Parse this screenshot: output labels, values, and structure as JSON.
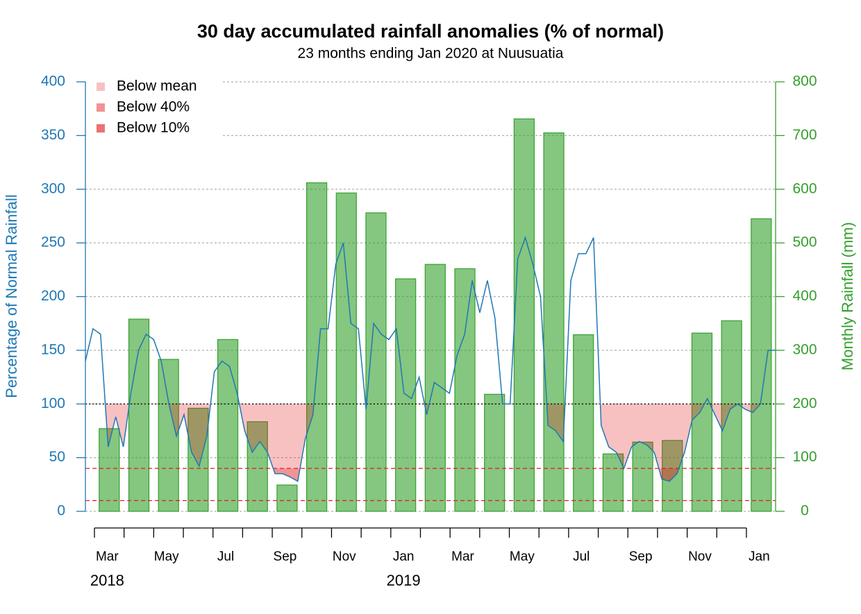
{
  "chart_data": {
    "type": "bar",
    "title": "30 day accumulated rainfall anomalies (% of normal)",
    "subtitle": "23 months ending Jan 2020 at Nuusuatia",
    "y_label": "Percentage of Normal Rainfall",
    "y2_label": "Monthly Rainfall (mm)",
    "categories": [
      "Mar",
      null,
      "May",
      null,
      "Jul",
      null,
      "Sep",
      null,
      "Nov",
      null,
      "Jan",
      null,
      "Mar",
      null,
      "May",
      null,
      "Jul",
      null,
      "Sep",
      null,
      "Nov",
      null,
      "Jan"
    ],
    "year_labels": [
      "2018",
      null,
      null,
      null,
      null,
      null,
      null,
      null,
      null,
      null,
      "2019",
      null,
      null,
      null,
      null,
      null,
      null,
      null,
      null,
      null,
      null,
      null,
      null
    ],
    "ylim": [
      0,
      400
    ],
    "yticks": [
      0,
      50,
      100,
      150,
      200,
      250,
      300,
      350,
      400
    ],
    "y2lim": [
      0,
      800
    ],
    "y2ticks": [
      0,
      100,
      200,
      300,
      400,
      500,
      600,
      700,
      800
    ],
    "grid": true,
    "legend": "top-left",
    "axis_color": "#1f78b4",
    "axis2_color": "#33a02c",
    "bars": {
      "axis": "y2",
      "color": "#33a02c",
      "values": [
        154,
        358,
        283,
        192,
        320,
        167,
        49,
        612,
        593,
        556,
        433,
        460,
        452,
        218,
        731,
        705,
        329,
        107,
        129,
        132,
        332,
        355,
        545
      ]
    },
    "line": {
      "color": "#1f78b4",
      "values": [
        140,
        170,
        165,
        60,
        88,
        60,
        110,
        150,
        165,
        160,
        140,
        100,
        70,
        90,
        55,
        42,
        70,
        130,
        140,
        135,
        110,
        75,
        55,
        65,
        55,
        35,
        35,
        32,
        28,
        68,
        90,
        170,
        170,
        230,
        250,
        175,
        170,
        95,
        175,
        165,
        160,
        170,
        110,
        105,
        125,
        90,
        120,
        115,
        110,
        145,
        165,
        215,
        185,
        215,
        180,
        100,
        100,
        235,
        255,
        230,
        200,
        80,
        75,
        65,
        215,
        240,
        240,
        255,
        80,
        60,
        55,
        40,
        60,
        65,
        62,
        55,
        30,
        28,
        35,
        55,
        85,
        92,
        105,
        90,
        75,
        95,
        100,
        95,
        92,
        100,
        150,
        150
      ]
    },
    "shading": [
      {
        "name": "Below mean",
        "threshold": 100,
        "color": "#e31a1c",
        "line_color": "#000000"
      },
      {
        "name": "Below 40%",
        "threshold": 40,
        "color": "#e31a1c",
        "line_color": "#e31a1c"
      },
      {
        "name": "Below 10%",
        "threshold": 10,
        "color": "#e31a1c",
        "line_color": "#e31a1c"
      }
    ]
  }
}
